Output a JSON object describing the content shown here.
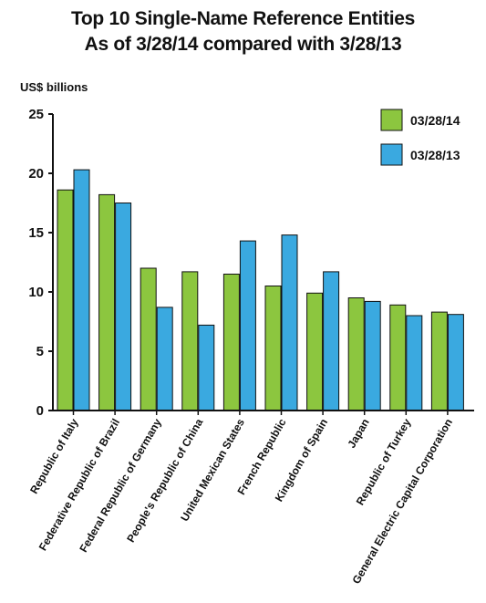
{
  "chart_data": {
    "type": "bar",
    "title_line1": "Top 10 Single-Name Reference Entities",
    "title_line2": "As of 3/28/14 compared with 3/28/13",
    "ylabel": "US$ billions",
    "xlabel": "",
    "ylim": [
      0,
      25
    ],
    "yticks": [
      "0",
      "5",
      "10",
      "15",
      "20",
      "25"
    ],
    "grid": false,
    "legend_position": "top-right",
    "categories": [
      "Republic of Italy",
      "Federative Republic of Brazil",
      "Federal Republic of Germany",
      "People's Republic of China",
      "United Mexican States",
      "French Republic",
      "Kingdom of Spain",
      "Japan",
      "Republic of Turkey",
      "General Electric Capital Corporation"
    ],
    "series": [
      {
        "name": "03/28/14",
        "color": "#8cc63f",
        "values": [
          18.6,
          18.2,
          12.0,
          11.7,
          11.5,
          10.5,
          9.9,
          9.5,
          8.9,
          8.3
        ]
      },
      {
        "name": "03/28/13",
        "color": "#3aa9e0",
        "values": [
          20.3,
          17.5,
          8.7,
          7.2,
          14.3,
          14.8,
          11.7,
          9.2,
          8.0,
          8.1
        ]
      }
    ]
  }
}
